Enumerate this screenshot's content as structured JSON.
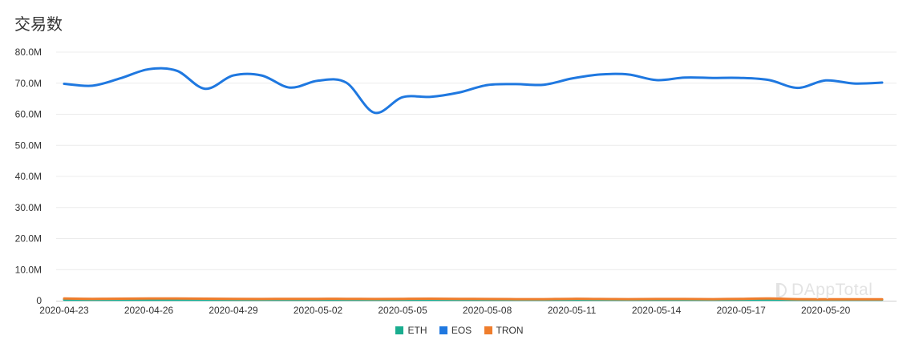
{
  "title": "交易数",
  "watermark": "DAppTotal",
  "legend": [
    {
      "name": "ETH",
      "color": "#1aad8f"
    },
    {
      "name": "EOS",
      "color": "#1f78e0"
    },
    {
      "name": "TRON",
      "color": "#ef7d2c"
    }
  ],
  "chart_data": {
    "type": "line",
    "title": "交易数",
    "x": [
      "2020-04-23",
      "2020-04-24",
      "2020-04-25",
      "2020-04-26",
      "2020-04-27",
      "2020-04-28",
      "2020-04-29",
      "2020-04-30",
      "2020-05-01",
      "2020-05-02",
      "2020-05-03",
      "2020-05-04",
      "2020-05-05",
      "2020-05-06",
      "2020-05-07",
      "2020-05-08",
      "2020-05-09",
      "2020-05-10",
      "2020-05-11",
      "2020-05-12",
      "2020-05-13",
      "2020-05-14",
      "2020-05-15",
      "2020-05-16",
      "2020-05-17",
      "2020-05-18",
      "2020-05-19",
      "2020-05-20",
      "2020-05-21",
      "2020-05-22"
    ],
    "x_tick_labels": [
      "2020-04-23",
      "2020-04-26",
      "2020-04-29",
      "2020-05-02",
      "2020-05-05",
      "2020-05-08",
      "2020-05-11",
      "2020-05-14",
      "2020-05-17",
      "2020-05-20"
    ],
    "y_tick_labels": [
      "0",
      "10.0M",
      "20.0M",
      "30.0M",
      "40.0M",
      "50.0M",
      "60.0M",
      "70.0M",
      "80.0M"
    ],
    "ylim": [
      0,
      80000000
    ],
    "grid": true,
    "legend_position": "bottom",
    "series": [
      {
        "name": "ETH",
        "color": "#1aad8f",
        "values": [
          300000,
          300000,
          300000,
          300000,
          300000,
          300000,
          300000,
          300000,
          300000,
          300000,
          300000,
          300000,
          300000,
          300000,
          300000,
          300000,
          300000,
          300000,
          300000,
          300000,
          300000,
          300000,
          300000,
          300000,
          300000,
          300000,
          300000,
          300000,
          300000,
          300000
        ]
      },
      {
        "name": "EOS",
        "color": "#1f78e0",
        "values": [
          69800000,
          69200000,
          71600000,
          74500000,
          74000000,
          68200000,
          72500000,
          72500000,
          68600000,
          70800000,
          70200000,
          60500000,
          65500000,
          65600000,
          67000000,
          69400000,
          69700000,
          69500000,
          71500000,
          72800000,
          72800000,
          71000000,
          71800000,
          71700000,
          71700000,
          71000000,
          68500000,
          70900000,
          69900000,
          70200000
        ]
      },
      {
        "name": "TRON",
        "color": "#ef7d2c",
        "values": [
          700000,
          600000,
          650000,
          700000,
          700000,
          650000,
          600000,
          550000,
          600000,
          600000,
          600000,
          550000,
          600000,
          650000,
          600000,
          550000,
          500000,
          500000,
          600000,
          550000,
          500000,
          550000,
          550000,
          500000,
          600000,
          700000,
          500000,
          450000,
          450000,
          450000
        ]
      }
    ]
  }
}
